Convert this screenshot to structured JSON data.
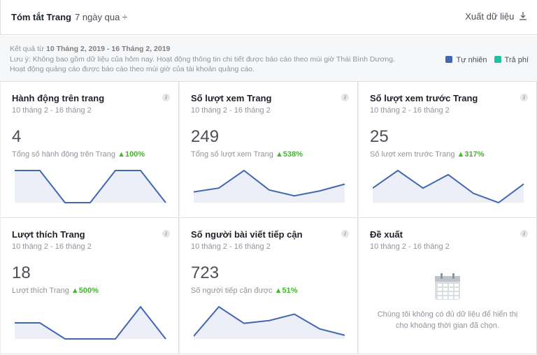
{
  "header": {
    "title": "Tóm tắt Trang",
    "range": "7 ngày qua ÷",
    "export": "Xuất dữ liệu"
  },
  "notes": {
    "results_prefix": "Kết quả từ ",
    "results_range": "10 Tháng 2, 2019 - 16 Tháng 2, 2019",
    "line1": "Lưu ý: Không bao gồm dữ liệu của hôm nay. Hoạt động thông tin chi tiết được báo cáo theo múi giờ Thái Bình Dương.",
    "line2": "Hoạt động quảng cáo được báo cáo theo múi giờ của tài khoản quảng cáo."
  },
  "legend": [
    {
      "label": "Tự nhiên",
      "color": "#4267b2"
    },
    {
      "label": "Trả phí",
      "color": "#20c1a1"
    }
  ],
  "colors": {
    "line": "#4267b2",
    "fill": "#eceff8",
    "up": "#42b72a"
  },
  "panels": [
    {
      "title": "Hành động trên trang",
      "date": "10 tháng 2 - 16 tháng 2",
      "value": "4",
      "label": "Tổng số hành động trên Trang",
      "change": "▲100%",
      "spark": [
        1,
        1,
        0,
        0,
        1,
        1,
        0
      ]
    },
    {
      "title": "Số lượt xem Trang",
      "date": "10 tháng 2 - 16 tháng 2",
      "value": "249",
      "label": "Tổng số lượt xem Trang",
      "change": "▲538%",
      "spark": [
        11,
        15,
        33,
        13,
        7,
        12,
        19
      ]
    },
    {
      "title": "Số lượt xem trước Trang",
      "date": "10 tháng 2 - 16 tháng 2",
      "value": "25",
      "label": "Số lượt xem trước Trang",
      "change": "▲317%",
      "spark": [
        14,
        31,
        14,
        27,
        9,
        0,
        18
      ]
    },
    {
      "title": "Lượt thích Trang",
      "date": "10 tháng 2 - 16 tháng 2",
      "value": "18",
      "label": "Lượt thích Trang",
      "change": "▲500%",
      "spark": [
        23,
        23,
        0,
        0,
        0,
        46,
        0
      ]
    },
    {
      "title": "Số người bài viết tiếp cận",
      "date": "10 tháng 2 - 16 tháng 2",
      "value": "723",
      "label": "Số người tiếp cận được",
      "change": "▲51%",
      "spark": [
        3,
        35,
        17,
        20,
        27,
        11,
        4
      ]
    },
    {
      "title": "Đề xuất",
      "date": "10 tháng 2 - 16 tháng 2",
      "empty1": "Chúng tôi không có đủ dữ liệu để hiển thị",
      "empty2": "cho khoảng thời gian đã chọn."
    }
  ],
  "info_icon": "i"
}
